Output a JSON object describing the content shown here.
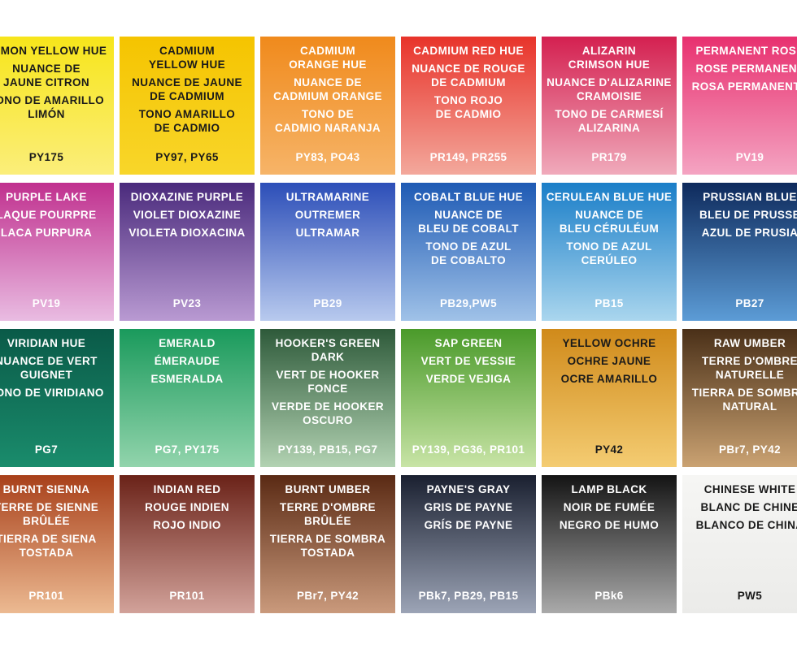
{
  "swatches": [
    {
      "names": [
        [
          "LEMON YELLOW HUE"
        ],
        [
          "NUANCE DE",
          "JAUNE CITRON"
        ],
        [
          "TONO DE AMARILLO",
          "LIMÓN"
        ]
      ],
      "code": "PY175",
      "colors": [
        "#f7e51a",
        "#fbee7a"
      ],
      "text_color": "#1a1a1a"
    },
    {
      "names": [
        [
          "CADMIUM",
          "YELLOW HUE"
        ],
        [
          "NUANCE DE JAUNE",
          "DE CADMIUM"
        ],
        [
          "TONO AMARILLO",
          "DE CADMIO"
        ]
      ],
      "code": "PY97, PY65",
      "colors": [
        "#f5c400",
        "#f8d62a"
      ],
      "text_color": "#1a1a1a"
    },
    {
      "names": [
        [
          "CADMIUM",
          "ORANGE HUE"
        ],
        [
          "NUANCE DE",
          "CADMIUM ORANGE"
        ],
        [
          "TONO DE",
          "CADMIO NARANJA"
        ]
      ],
      "code": "PY83, PO43",
      "colors": [
        "#f08a1c",
        "#f6b468"
      ],
      "text_color": "#ffffff"
    },
    {
      "names": [
        [
          "CADMIUM RED HUE"
        ],
        [
          "NUANCE DE ROUGE",
          "DE CADMIUM"
        ],
        [
          "TONO ROJO",
          "DE CADMIO"
        ]
      ],
      "code": "PR149, PR255",
      "colors": [
        "#e8332a",
        "#f3a89c"
      ],
      "text_color": "#ffffff"
    },
    {
      "names": [
        [
          "ALIZARIN",
          "CRIMSON HUE"
        ],
        [
          "NUANCE D'ALIZARINE",
          "CRAMOISIE"
        ],
        [
          "TONO DE CARMESÍ",
          "ALIZARINA"
        ]
      ],
      "code": "PR179",
      "colors": [
        "#d42050",
        "#f0aabb"
      ],
      "text_color": "#ffffff"
    },
    {
      "names": [
        [
          "PERMANENT ROSE"
        ],
        [
          "ROSE PERMANENT"
        ],
        [
          "ROSA PERMANENTE"
        ]
      ],
      "code": "PV19",
      "colors": [
        "#e8306f",
        "#f4a4c2"
      ],
      "text_color": "#ffffff"
    },
    {
      "names": [
        [
          "PURPLE LAKE"
        ],
        [
          "LAQUE POURPRE"
        ],
        [
          "LACA PURPURA"
        ]
      ],
      "code": "PV19",
      "colors": [
        "#c0308e",
        "#e9bce2"
      ],
      "text_color": "#ffffff"
    },
    {
      "names": [
        [
          "DIOXAZINE PURPLE"
        ],
        [
          "VIOLET DIOXAZINE"
        ],
        [
          "VIOLETA DIOXACINA"
        ]
      ],
      "code": "PV23",
      "colors": [
        "#4a2a7c",
        "#b99ad2"
      ],
      "text_color": "#ffffff"
    },
    {
      "names": [
        [
          "ULTRAMARINE"
        ],
        [
          "OUTREMER"
        ],
        [
          "ULTRAMAR"
        ]
      ],
      "code": "PB29",
      "colors": [
        "#2c4eb8",
        "#b8caee"
      ],
      "text_color": "#ffffff"
    },
    {
      "names": [
        [
          "COBALT BLUE HUE"
        ],
        [
          "NUANCE DE",
          "BLEU DE COBALT"
        ],
        [
          "TONO DE AZUL",
          "DE COBALTO"
        ]
      ],
      "code": "PB29,PW5",
      "colors": [
        "#1e5ab4",
        "#a0c2e8"
      ],
      "text_color": "#ffffff"
    },
    {
      "names": [
        [
          "CERULEAN BLUE HUE"
        ],
        [
          "NUANCE DE",
          "BLEU CÉRULÉUM"
        ],
        [
          "TONO DE AZUL",
          "CERÚLEO"
        ]
      ],
      "code": "PB15",
      "colors": [
        "#1a7ec8",
        "#aad6ee"
      ],
      "text_color": "#ffffff"
    },
    {
      "names": [
        [
          "PRUSSIAN BLUE"
        ],
        [
          "BLEU DE PRUSSE"
        ],
        [
          "AZUL DE PRUSIA"
        ]
      ],
      "code": "PB27",
      "colors": [
        "#0e2a5c",
        "#5c9cd6"
      ],
      "text_color": "#ffffff"
    },
    {
      "names": [
        [
          "VIRIDIAN HUE"
        ],
        [
          "NUANCE DE VERT",
          "GUIGNET"
        ],
        [
          "TONO DE VIRIDIANO"
        ]
      ],
      "code": "PG7",
      "colors": [
        "#0a5a48",
        "#1a8c6c"
      ],
      "text_color": "#ffffff"
    },
    {
      "names": [
        [
          "EMERALD"
        ],
        [
          "ÉMERAUDE"
        ],
        [
          "ESMERALDA"
        ]
      ],
      "code": "PG7, PY175",
      "colors": [
        "#1a9a5c",
        "#92d4ac"
      ],
      "text_color": "#ffffff"
    },
    {
      "names": [
        [
          "HOOKER'S GREEN",
          "DARK"
        ],
        [
          "VERT DE HOOKER",
          "FONCE"
        ],
        [
          "VERDE DE HOOKER",
          "OSCURO"
        ]
      ],
      "code": "PY139, PB15, PG7",
      "colors": [
        "#2e5a3a",
        "#b2d2b2"
      ],
      "text_color": "#ffffff"
    },
    {
      "names": [
        [
          "SAP GREEN"
        ],
        [
          "VERT DE VESSIE"
        ],
        [
          "VERDE VEJIGA"
        ]
      ],
      "code": "PY139, PG36, PR101",
      "colors": [
        "#4a9a2a",
        "#c8e4a6"
      ],
      "text_color": "#ffffff"
    },
    {
      "names": [
        [
          "YELLOW OCHRE"
        ],
        [
          "OCHRE JAUNE"
        ],
        [
          "OCRE AMARILLO"
        ]
      ],
      "code": "PY42",
      "colors": [
        "#d08a1a",
        "#f4cc72"
      ],
      "text_color": "#1a1a1a"
    },
    {
      "names": [
        [
          "RAW UMBER"
        ],
        [
          "TERRE D'OMBRE",
          "NATURELLE"
        ],
        [
          "TIERRA DE SOMBRA",
          "NATURAL"
        ]
      ],
      "code": "PBr7, PY42",
      "colors": [
        "#4a3018",
        "#caa272"
      ],
      "text_color": "#ffffff"
    },
    {
      "names": [
        [
          "BURNT SIENNA"
        ],
        [
          "TERRE DE SIENNE",
          "BRÛLÉE"
        ],
        [
          "TIERRA DE SIENA",
          "TOSTADA"
        ]
      ],
      "code": "PR101",
      "colors": [
        "#a8401a",
        "#ecba92"
      ],
      "text_color": "#ffffff"
    },
    {
      "names": [
        [
          "INDIAN RED"
        ],
        [
          "ROUGE INDIEN"
        ],
        [
          "ROJO INDIO"
        ]
      ],
      "code": "PR101",
      "colors": [
        "#6a2218",
        "#d2a29a"
      ],
      "text_color": "#ffffff"
    },
    {
      "names": [
        [
          "BURNT UMBER"
        ],
        [
          "TERRE D'OMBRE",
          "BRÛLÉE"
        ],
        [
          "TIERRA DE SOMBRA",
          "TOSTADA"
        ]
      ],
      "code": "PBr7, PY42",
      "colors": [
        "#5a2a14",
        "#ca9a7c"
      ],
      "text_color": "#ffffff"
    },
    {
      "names": [
        [
          "PAYNE'S GRAY"
        ],
        [
          "GRIS DE PAYNE"
        ],
        [
          "GRÍS DE PAYNE"
        ]
      ],
      "code": "PBk7, PB29, PB15",
      "colors": [
        "#1a2030",
        "#9ca4b6"
      ],
      "text_color": "#ffffff"
    },
    {
      "names": [
        [
          "LAMP BLACK"
        ],
        [
          "NOIR DE FUMÉE"
        ],
        [
          "NEGRO DE HUMO"
        ]
      ],
      "code": "PBk6",
      "colors": [
        "#141414",
        "#aaaaaa"
      ],
      "text_color": "#ffffff"
    },
    {
      "names": [
        [
          "CHINESE WHITE"
        ],
        [
          "BLANC DE CHINE"
        ],
        [
          "BLANCO DE CHINA"
        ]
      ],
      "code": "PW5",
      "colors": [
        "#f6f6f4",
        "#ebebe9"
      ],
      "text_color": "#1a1a1a"
    }
  ]
}
